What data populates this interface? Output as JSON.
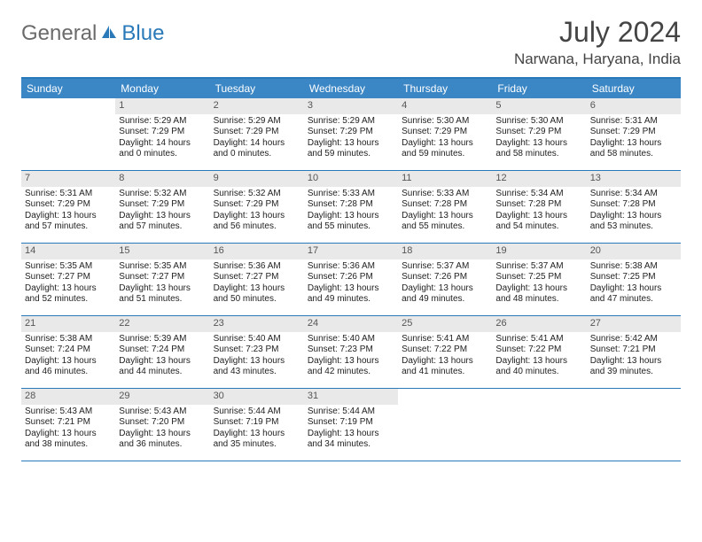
{
  "logo": {
    "text1": "General",
    "text2": "Blue"
  },
  "title": "July 2024",
  "location": "Narwana, Haryana, India",
  "header_bg": "#3b86c5",
  "border_color": "#2a7ab9",
  "daynum_bg": "#e9e9e9",
  "day_names": [
    "Sunday",
    "Monday",
    "Tuesday",
    "Wednesday",
    "Thursday",
    "Friday",
    "Saturday"
  ],
  "weeks": [
    [
      null,
      {
        "n": "1",
        "sr": "5:29 AM",
        "ss": "7:29 PM",
        "dl": "14 hours and 0 minutes."
      },
      {
        "n": "2",
        "sr": "5:29 AM",
        "ss": "7:29 PM",
        "dl": "14 hours and 0 minutes."
      },
      {
        "n": "3",
        "sr": "5:29 AM",
        "ss": "7:29 PM",
        "dl": "13 hours and 59 minutes."
      },
      {
        "n": "4",
        "sr": "5:30 AM",
        "ss": "7:29 PM",
        "dl": "13 hours and 59 minutes."
      },
      {
        "n": "5",
        "sr": "5:30 AM",
        "ss": "7:29 PM",
        "dl": "13 hours and 58 minutes."
      },
      {
        "n": "6",
        "sr": "5:31 AM",
        "ss": "7:29 PM",
        "dl": "13 hours and 58 minutes."
      }
    ],
    [
      {
        "n": "7",
        "sr": "5:31 AM",
        "ss": "7:29 PM",
        "dl": "13 hours and 57 minutes."
      },
      {
        "n": "8",
        "sr": "5:32 AM",
        "ss": "7:29 PM",
        "dl": "13 hours and 57 minutes."
      },
      {
        "n": "9",
        "sr": "5:32 AM",
        "ss": "7:29 PM",
        "dl": "13 hours and 56 minutes."
      },
      {
        "n": "10",
        "sr": "5:33 AM",
        "ss": "7:28 PM",
        "dl": "13 hours and 55 minutes."
      },
      {
        "n": "11",
        "sr": "5:33 AM",
        "ss": "7:28 PM",
        "dl": "13 hours and 55 minutes."
      },
      {
        "n": "12",
        "sr": "5:34 AM",
        "ss": "7:28 PM",
        "dl": "13 hours and 54 minutes."
      },
      {
        "n": "13",
        "sr": "5:34 AM",
        "ss": "7:28 PM",
        "dl": "13 hours and 53 minutes."
      }
    ],
    [
      {
        "n": "14",
        "sr": "5:35 AM",
        "ss": "7:27 PM",
        "dl": "13 hours and 52 minutes."
      },
      {
        "n": "15",
        "sr": "5:35 AM",
        "ss": "7:27 PM",
        "dl": "13 hours and 51 minutes."
      },
      {
        "n": "16",
        "sr": "5:36 AM",
        "ss": "7:27 PM",
        "dl": "13 hours and 50 minutes."
      },
      {
        "n": "17",
        "sr": "5:36 AM",
        "ss": "7:26 PM",
        "dl": "13 hours and 49 minutes."
      },
      {
        "n": "18",
        "sr": "5:37 AM",
        "ss": "7:26 PM",
        "dl": "13 hours and 49 minutes."
      },
      {
        "n": "19",
        "sr": "5:37 AM",
        "ss": "7:25 PM",
        "dl": "13 hours and 48 minutes."
      },
      {
        "n": "20",
        "sr": "5:38 AM",
        "ss": "7:25 PM",
        "dl": "13 hours and 47 minutes."
      }
    ],
    [
      {
        "n": "21",
        "sr": "5:38 AM",
        "ss": "7:24 PM",
        "dl": "13 hours and 46 minutes."
      },
      {
        "n": "22",
        "sr": "5:39 AM",
        "ss": "7:24 PM",
        "dl": "13 hours and 44 minutes."
      },
      {
        "n": "23",
        "sr": "5:40 AM",
        "ss": "7:23 PM",
        "dl": "13 hours and 43 minutes."
      },
      {
        "n": "24",
        "sr": "5:40 AM",
        "ss": "7:23 PM",
        "dl": "13 hours and 42 minutes."
      },
      {
        "n": "25",
        "sr": "5:41 AM",
        "ss": "7:22 PM",
        "dl": "13 hours and 41 minutes."
      },
      {
        "n": "26",
        "sr": "5:41 AM",
        "ss": "7:22 PM",
        "dl": "13 hours and 40 minutes."
      },
      {
        "n": "27",
        "sr": "5:42 AM",
        "ss": "7:21 PM",
        "dl": "13 hours and 39 minutes."
      }
    ],
    [
      {
        "n": "28",
        "sr": "5:43 AM",
        "ss": "7:21 PM",
        "dl": "13 hours and 38 minutes."
      },
      {
        "n": "29",
        "sr": "5:43 AM",
        "ss": "7:20 PM",
        "dl": "13 hours and 36 minutes."
      },
      {
        "n": "30",
        "sr": "5:44 AM",
        "ss": "7:19 PM",
        "dl": "13 hours and 35 minutes."
      },
      {
        "n": "31",
        "sr": "5:44 AM",
        "ss": "7:19 PM",
        "dl": "13 hours and 34 minutes."
      },
      null,
      null,
      null
    ]
  ]
}
